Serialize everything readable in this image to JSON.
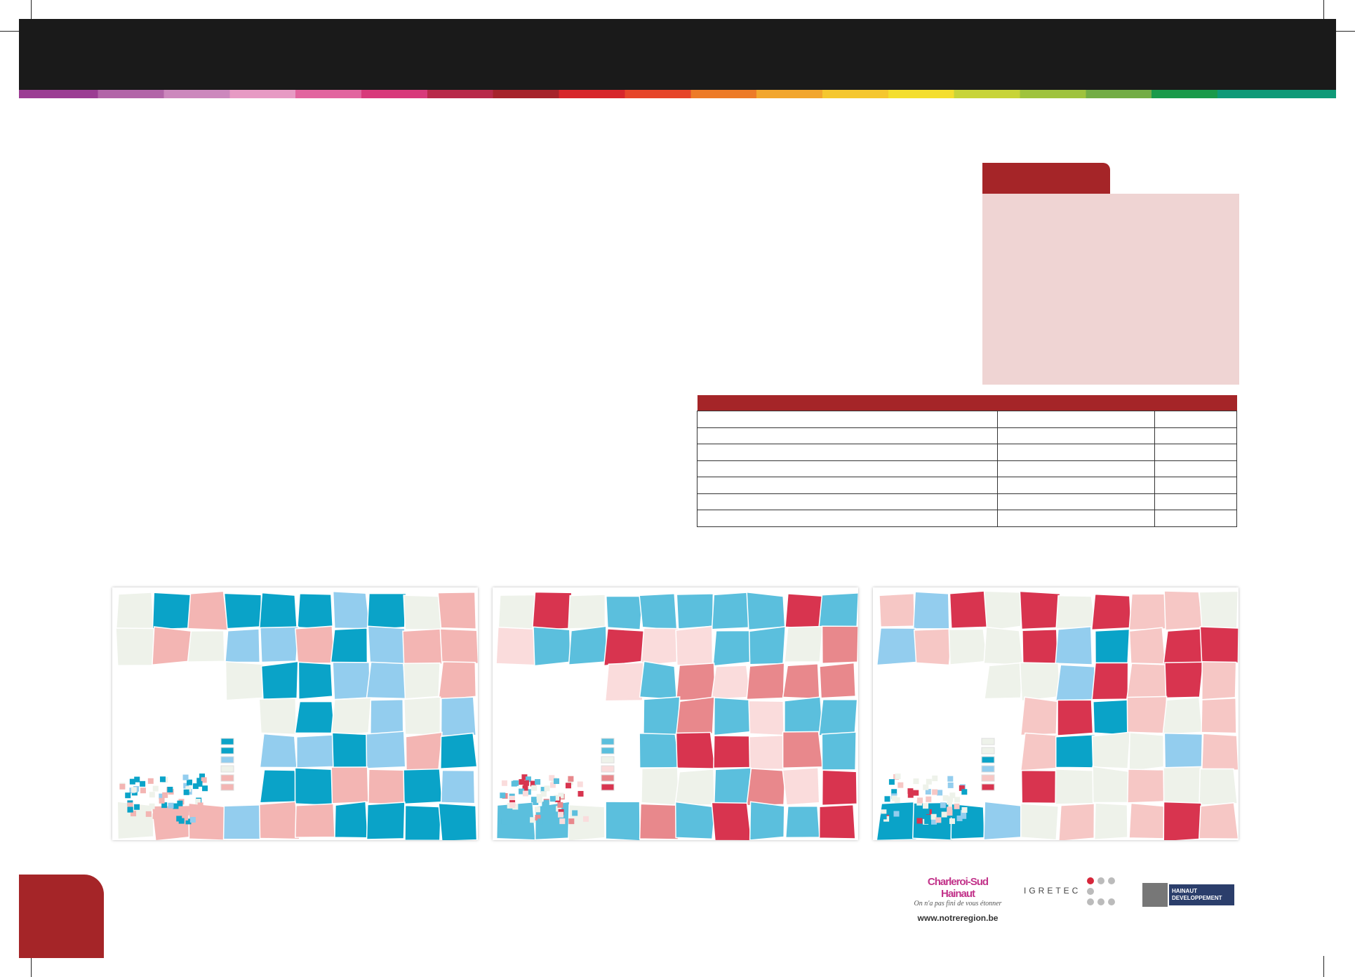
{
  "footer": {
    "logos": {
      "charleroi": {
        "name": "Charleroi-Sud Hainaut",
        "tagline": "On n'a pas fini de vous étonner",
        "url": "www.notreregion.be"
      },
      "igretec": "IGRETEC",
      "hainaut": {
        "line1": "HAINAUT",
        "line2": "DEVELOPPEMENT"
      }
    }
  }
}
